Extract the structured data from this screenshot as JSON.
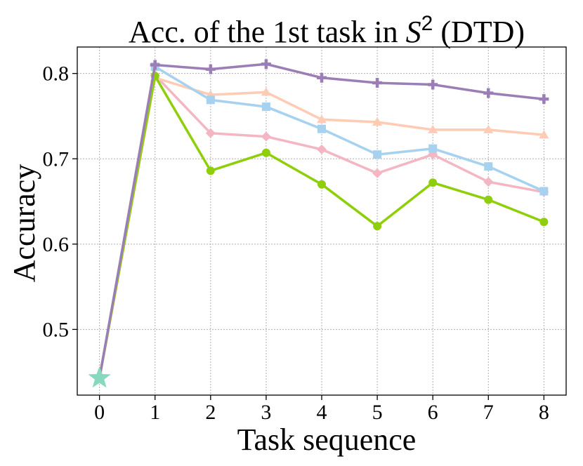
{
  "chart_data": {
    "type": "line",
    "title": {
      "prefix": "Acc. of the 1st task in ",
      "symbol": "S",
      "superscript": "2",
      "suffix": " (DTD)"
    },
    "xlabel": "Task sequence",
    "ylabel": "Accuracy",
    "xlim": [
      -0.4,
      8.4
    ],
    "ylim": [
      0.423,
      0.831
    ],
    "x_ticks": [
      0,
      1,
      2,
      3,
      4,
      5,
      6,
      7,
      8
    ],
    "y_ticks": [
      0.5,
      0.6,
      0.7,
      0.8
    ],
    "y_tick_labels": [
      "0.5",
      "0.6",
      "0.7",
      "0.8"
    ],
    "grid": true,
    "start_point": {
      "x": 0,
      "y": 0.443,
      "marker": "star",
      "color": "#88d8c0"
    },
    "series": [
      {
        "color": "#f4b6c2",
        "marker": "diamond",
        "x": [
          0,
          1,
          2,
          3,
          4,
          5,
          6,
          7,
          8
        ],
        "y": [
          0.443,
          0.798,
          0.73,
          0.726,
          0.711,
          0.683,
          0.705,
          0.673,
          0.661
        ]
      },
      {
        "color": "#ffcbb5",
        "marker": "triangle",
        "x": [
          0,
          1,
          2,
          3,
          4,
          5,
          6,
          7,
          8
        ],
        "y": [
          0.443,
          0.795,
          0.775,
          0.778,
          0.746,
          0.743,
          0.734,
          0.734,
          0.728
        ]
      },
      {
        "color": "#a6d2f0",
        "marker": "square",
        "x": [
          0,
          1,
          2,
          3,
          4,
          5,
          6,
          7,
          8
        ],
        "y": [
          0.443,
          0.808,
          0.769,
          0.761,
          0.735,
          0.705,
          0.712,
          0.691,
          0.662
        ]
      },
      {
        "color": "#8fce0a",
        "marker": "circle",
        "x": [
          0,
          1,
          2,
          3,
          4,
          5,
          6,
          7,
          8
        ],
        "y": [
          0.443,
          0.797,
          0.686,
          0.707,
          0.67,
          0.621,
          0.672,
          0.652,
          0.626
        ]
      },
      {
        "color": "#9b7eb6",
        "marker": "plus",
        "x": [
          0,
          1,
          2,
          3,
          4,
          5,
          6,
          7,
          8
        ],
        "y": [
          0.443,
          0.81,
          0.805,
          0.811,
          0.795,
          0.789,
          0.787,
          0.777,
          0.77
        ]
      }
    ]
  }
}
